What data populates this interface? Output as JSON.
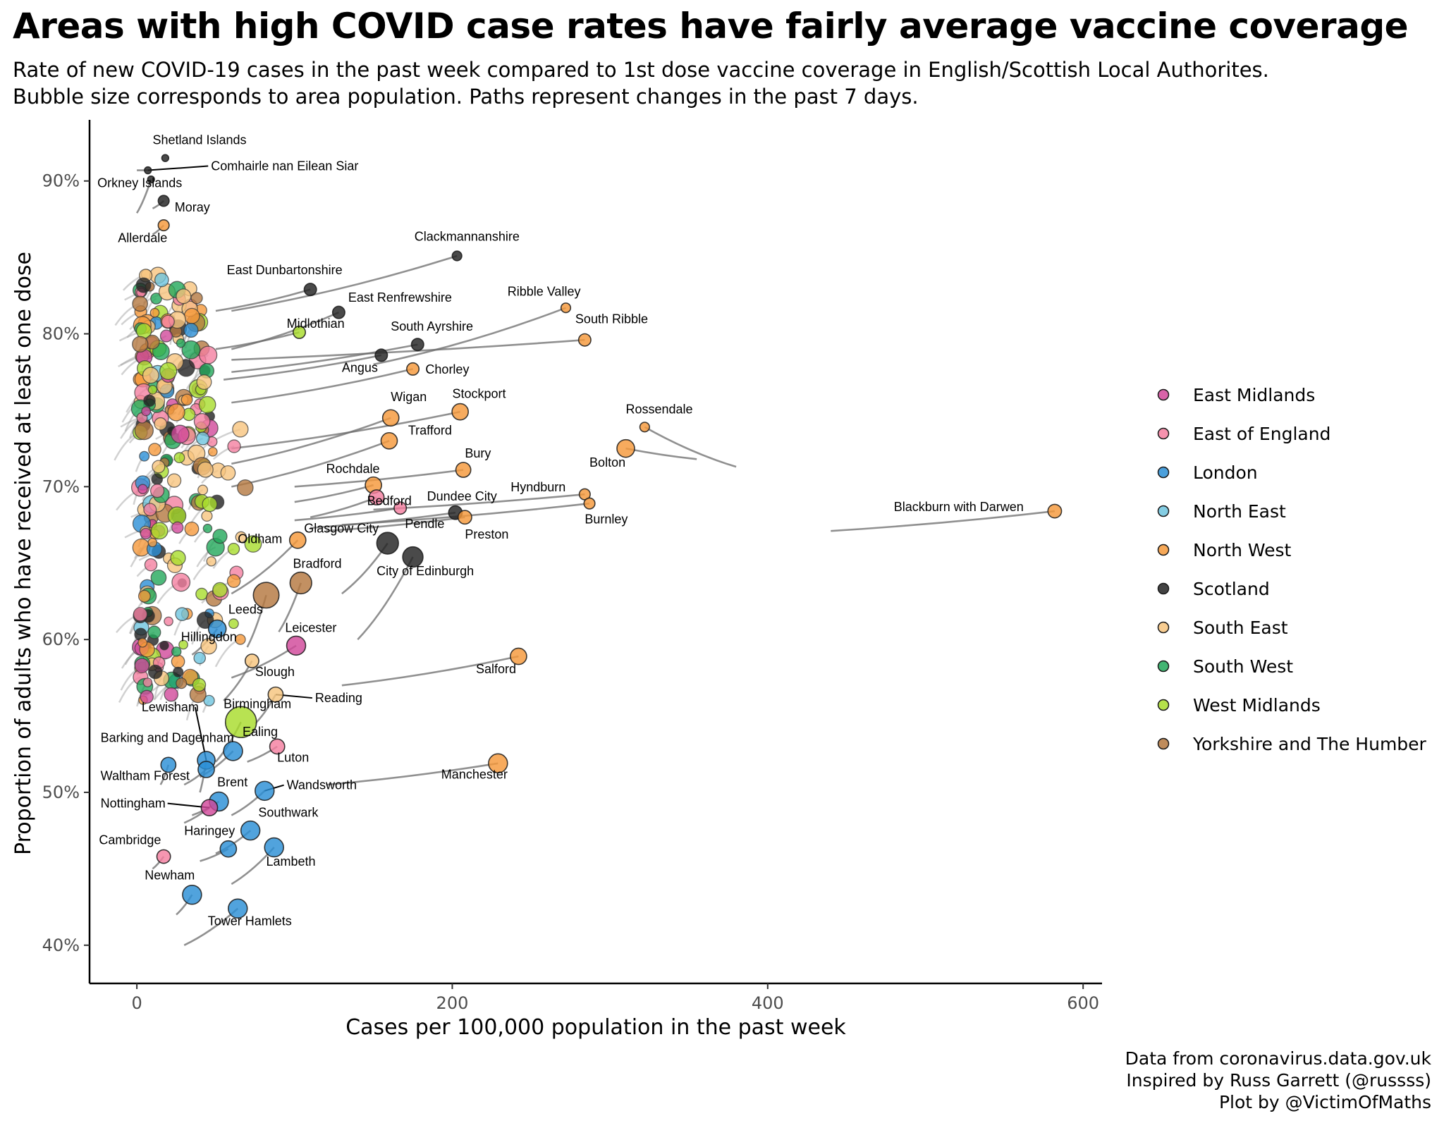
{
  "chart_data": {
    "type": "scatter",
    "title": "Areas with high COVID case rates have fairly average vaccine coverage",
    "subtitle_lines": [
      "Rate of new COVID-19 cases in the past week compared to 1st dose vaccine coverage in English/Scottish Local Authorites.",
      "Bubble size corresponds to area population. Paths represent changes in the past 7 days."
    ],
    "xlabel": "Cases per 100,000 population in the past week",
    "ylabel": "Proportion of adults who have received at least one dose",
    "xlim": [
      -30,
      612
    ],
    "ylim": [
      37.5,
      94
    ],
    "x_ticks": [
      0,
      200,
      400,
      600
    ],
    "x_tick_labels": [
      "0",
      "200",
      "400",
      "600"
    ],
    "y_ticks": [
      40,
      50,
      60,
      70,
      80,
      90
    ],
    "y_tick_labels": [
      "40%",
      "50%",
      "60%",
      "70%",
      "80%",
      "90%"
    ],
    "grid": false,
    "legend_position": "right",
    "legend": [
      {
        "name": "East Midlands",
        "color": "#d1489a"
      },
      {
        "name": "East of England",
        "color": "#f47fa0"
      },
      {
        "name": "London",
        "color": "#2b8fd6"
      },
      {
        "name": "North East",
        "color": "#6ec4de"
      },
      {
        "name": "North West",
        "color": "#f5993b"
      },
      {
        "name": "Scotland",
        "color": "#222222"
      },
      {
        "name": "South East",
        "color": "#f7c47e"
      },
      {
        "name": "South West",
        "color": "#22a85a"
      },
      {
        "name": "West Midlands",
        "color": "#a8dc2c"
      },
      {
        "name": "Yorkshire and The Humber",
        "color": "#b47840"
      }
    ],
    "labeled_points": [
      {
        "label": "Shetland Islands",
        "x": 18,
        "y": 91.5,
        "region": "Scotland",
        "size": 2,
        "tx": 10,
        "ty": 92.4,
        "trail_x": 18,
        "trail_y": 91.5
      },
      {
        "label": "Comhairle nan Eilean Siar",
        "x": 7,
        "y": 90.7,
        "region": "Scotland",
        "size": 2,
        "tx": 47,
        "ty": 90.7,
        "trail_x": 0,
        "trail_y": 90.7,
        "leader": true
      },
      {
        "label": "Orkney Islands",
        "x": 9,
        "y": 90.1,
        "region": "Scotland",
        "size": 2,
        "tx": -25,
        "ty": 89.6,
        "trail_x": 0,
        "trail_y": 87.9
      },
      {
        "label": "Moray",
        "x": 17,
        "y": 88.7,
        "region": "Scotland",
        "size": 5,
        "tx": 24,
        "ty": 88.0,
        "trail_x": 10,
        "trail_y": 88.2
      },
      {
        "label": "Allerdale",
        "x": 17,
        "y": 87.1,
        "region": "North West",
        "size": 5,
        "tx": -12,
        "ty": 86.0,
        "trail_x": 10,
        "trail_y": 86.5
      },
      {
        "label": "Clackmannanshire",
        "x": 203,
        "y": 85.1,
        "region": "Scotland",
        "size": 4,
        "tx": 176,
        "ty": 86.1,
        "trail_x": 60,
        "trail_y": 81.5
      },
      {
        "label": "East Dunbartonshire",
        "x": 110,
        "y": 82.9,
        "region": "Scotland",
        "size": 6,
        "tx": 57,
        "ty": 83.9,
        "trail_x": 50,
        "trail_y": 81.5
      },
      {
        "label": "Ribble Valley",
        "x": 272,
        "y": 81.7,
        "region": "North West",
        "size": 4,
        "tx": 235,
        "ty": 82.5,
        "trail_x": 150,
        "trail_y": 78.0
      },
      {
        "label": "East Renfrewshire",
        "x": 128,
        "y": 81.4,
        "region": "Scotland",
        "size": 6,
        "tx": 134,
        "ty": 82.1,
        "trail_x": 60,
        "trail_y": 79.0
      },
      {
        "label": "South Ribble",
        "x": 284,
        "y": 79.6,
        "region": "North West",
        "size": 6,
        "tx": 278,
        "ty": 80.7,
        "trail_x": 60,
        "trail_y": 78.3
      },
      {
        "label": "Midlothian",
        "x": 103,
        "y": 80.1,
        "region": "West Midlands",
        "size": 6,
        "tx": 95,
        "ty": 80.4,
        "trail_x": 50,
        "trail_y": 79.0
      },
      {
        "label": "South Ayrshire",
        "x": 178,
        "y": 79.3,
        "region": "Scotland",
        "size": 6,
        "tx": 161,
        "ty": 80.2,
        "trail_x": 60,
        "trail_y": 77.5
      },
      {
        "label": "Angus",
        "x": 155,
        "y": 78.6,
        "region": "Scotland",
        "size": 6,
        "tx": 130,
        "ty": 77.5,
        "trail_x": 55,
        "trail_y": 77.0
      },
      {
        "label": "Chorley",
        "x": 175,
        "y": 77.7,
        "region": "North West",
        "size": 6,
        "tx": 183,
        "ty": 77.4,
        "trail_x": 60,
        "trail_y": 75.5
      },
      {
        "label": "Stockport",
        "x": 205,
        "y": 74.9,
        "region": "North West",
        "size": 9,
        "tx": 200,
        "ty": 75.8,
        "trail_x": 60,
        "trail_y": 72.5
      },
      {
        "label": "Wigan",
        "x": 161,
        "y": 74.5,
        "region": "North West",
        "size": 9,
        "tx": 161,
        "ty": 75.6,
        "trail_x": 60,
        "trail_y": 71.5
      },
      {
        "label": "Rossendale",
        "x": 322,
        "y": 73.9,
        "region": "North West",
        "size": 4,
        "tx": 310,
        "ty": 74.8,
        "trail_x": 380,
        "trail_y": 71.3
      },
      {
        "label": "Trafford",
        "x": 160,
        "y": 73.0,
        "region": "North West",
        "size": 9,
        "tx": 172,
        "ty": 73.4,
        "trail_x": 60,
        "trail_y": 70.0
      },
      {
        "label": "Bolton",
        "x": 310,
        "y": 72.5,
        "region": "North West",
        "size": 10,
        "tx": 287,
        "ty": 71.3,
        "trail_x": 355,
        "trail_y": 71.8
      },
      {
        "label": "Bury",
        "x": 207,
        "y": 71.1,
        "region": "North West",
        "size": 8,
        "tx": 208,
        "ty": 71.9,
        "trail_x": 100,
        "trail_y": 70.0
      },
      {
        "label": "Rochdale",
        "x": 150,
        "y": 70.1,
        "region": "North West",
        "size": 9,
        "tx": 120,
        "ty": 70.9,
        "trail_x": 100,
        "trail_y": 69.0
      },
      {
        "label": "Hyndburn",
        "x": 284,
        "y": 69.5,
        "region": "North West",
        "size": 5,
        "tx": 237,
        "ty": 69.7,
        "trail_x": 150,
        "trail_y": 68.5
      },
      {
        "label": "Burnley",
        "x": 287,
        "y": 68.9,
        "region": "North West",
        "size": 5,
        "tx": 284,
        "ty": 67.6,
        "trail_x": 130,
        "trail_y": 67.5
      },
      {
        "label": "Blackburn with Darwen",
        "x": 582,
        "y": 68.4,
        "region": "North West",
        "size": 7,
        "tx": 480,
        "ty": 68.4,
        "trail_x": 440,
        "trail_y": 67.1
      },
      {
        "label": "Bedford",
        "x": 167,
        "y": 68.6,
        "region": "East of England",
        "size": 6,
        "tx": 146,
        "ty": 68.8,
        "trail_x": 100,
        "trail_y": 67.8
      },
      {
        "label": "Dundee City",
        "x": 202,
        "y": 68.3,
        "region": "Scotland",
        "size": 7,
        "tx": 184,
        "ty": 69.1,
        "trail_x": 110,
        "trail_y": 67.3
      },
      {
        "label": "Preston",
        "x": 208,
        "y": 68.0,
        "region": "North West",
        "size": 7,
        "tx": 208,
        "ty": 66.6,
        "trail_x": 120,
        "trail_y": 67.1
      },
      {
        "label": "Pendle",
        "x": 152,
        "y": 69.3,
        "region": "East of England",
        "size": 8,
        "tx": 170,
        "ty": 67.3,
        "trail_x": 110,
        "trail_y": 68.0
      },
      {
        "label": "Glasgow City",
        "x": 159,
        "y": 66.3,
        "region": "Scotland",
        "size": 13,
        "tx": 106,
        "ty": 67.0,
        "trail_x": 130,
        "trail_y": 63.0
      },
      {
        "label": "Oldham",
        "x": 102,
        "y": 66.5,
        "region": "North West",
        "size": 9,
        "tx": 64,
        "ty": 66.3,
        "trail_x": 60,
        "trail_y": 63.0
      },
      {
        "label": "City of Edinburgh",
        "x": 175,
        "y": 65.4,
        "region": "Scotland",
        "size": 12,
        "tx": 152,
        "ty": 64.2,
        "trail_x": 140,
        "trail_y": 60.0
      },
      {
        "label": "Bradford",
        "x": 104,
        "y": 63.7,
        "region": "Yorkshire and The Humber",
        "size": 13,
        "tx": 99,
        "ty": 64.7,
        "trail_x": 90,
        "trail_y": 60.5
      },
      {
        "label": "Leeds",
        "x": 82,
        "y": 62.9,
        "region": "Yorkshire and The Humber",
        "size": 16,
        "tx": 58,
        "ty": 61.7,
        "trail_x": 70,
        "trail_y": 59.5
      },
      {
        "label": "Leicester",
        "x": 101,
        "y": 59.6,
        "region": "East Midlands",
        "size": 11,
        "tx": 94,
        "ty": 60.5,
        "trail_x": 60,
        "trail_y": 57.5
      },
      {
        "label": "Hillingdon",
        "x": 51,
        "y": 60.7,
        "region": "London",
        "size": 10,
        "tx": 28,
        "ty": 59.9,
        "trail_x": 35,
        "trail_y": 59.0
      },
      {
        "label": "Salford",
        "x": 242,
        "y": 58.9,
        "region": "North West",
        "size": 9,
        "tx": 215,
        "ty": 57.8,
        "trail_x": 130,
        "trail_y": 57.0
      },
      {
        "label": "Slough",
        "x": 73,
        "y": 58.6,
        "region": "South East",
        "size": 7,
        "tx": 75,
        "ty": 57.6,
        "trail_x": 55,
        "trail_y": 56.0
      },
      {
        "label": "Birmingham",
        "x": 66,
        "y": 54.6,
        "region": "West Midlands",
        "size": 20,
        "tx": 55,
        "ty": 55.5,
        "trail_x": 50,
        "trail_y": 52.0
      },
      {
        "label": "Reading",
        "x": 88,
        "y": 56.4,
        "region": "South East",
        "size": 8,
        "tx": 113,
        "ty": 55.9,
        "trail_x": 75,
        "trail_y": 54.5,
        "leader": true
      },
      {
        "label": "Lewisham",
        "x": 44,
        "y": 52.1,
        "region": "London",
        "size": 10,
        "tx": 3,
        "ty": 55.3,
        "trail_x": 40,
        "trail_y": 50.0,
        "leader": true
      },
      {
        "label": "Barking and Dagenham",
        "x": 20,
        "y": 51.8,
        "region": "London",
        "size": 8,
        "tx": -23,
        "ty": 53.3,
        "trail_x": 15,
        "trail_y": 50.5
      },
      {
        "label": "Ealing",
        "x": 61,
        "y": 52.7,
        "region": "London",
        "size": 11,
        "tx": 67,
        "ty": 53.7,
        "trail_x": 40,
        "trail_y": 51.0
      },
      {
        "label": "Luton",
        "x": 89,
        "y": 53.0,
        "region": "East of England",
        "size": 8,
        "tx": 89,
        "ty": 52.0,
        "trail_x": 70,
        "trail_y": 52.0
      },
      {
        "label": "Manchester",
        "x": 229,
        "y": 51.9,
        "region": "North West",
        "size": 11,
        "tx": 193,
        "ty": 50.9,
        "trail_x": 120,
        "trail_y": 50.5
      },
      {
        "label": "Waltham Forest",
        "x": 44,
        "y": 51.5,
        "region": "London",
        "size": 9,
        "tx": -23,
        "ty": 50.8,
        "trail_x": 30,
        "trail_y": 50.5
      },
      {
        "label": "Brent",
        "x": 52,
        "y": 49.4,
        "region": "London",
        "size": 11,
        "tx": 51,
        "ty": 50.4,
        "trail_x": 35,
        "trail_y": 48.5
      },
      {
        "label": "Wandsworth",
        "x": 81,
        "y": 50.1,
        "region": "London",
        "size": 11,
        "tx": 95,
        "ty": 50.2,
        "trail_x": 60,
        "trail_y": 48.5,
        "leader": true
      },
      {
        "label": "Nottingham",
        "x": 46,
        "y": 49.0,
        "region": "East Midlands",
        "size": 9,
        "tx": -23,
        "ty": 49.0,
        "trail_x": 30,
        "trail_y": 48.0,
        "leader": true
      },
      {
        "label": "Southwark",
        "x": 72,
        "y": 47.5,
        "region": "London",
        "size": 11,
        "tx": 77,
        "ty": 48.4,
        "trail_x": 50,
        "trail_y": 46.0
      },
      {
        "label": "Haringey",
        "x": 58,
        "y": 46.3,
        "region": "London",
        "size": 9,
        "tx": 30,
        "ty": 47.2,
        "trail_x": 40,
        "trail_y": 45.5
      },
      {
        "label": "Cambridge",
        "x": 17,
        "y": 45.8,
        "region": "East of England",
        "size": 7,
        "tx": -24,
        "ty": 46.6,
        "trail_x": 10,
        "trail_y": 45.0
      },
      {
        "label": "Lambeth",
        "x": 87,
        "y": 46.4,
        "region": "London",
        "size": 11,
        "tx": 82,
        "ty": 45.2,
        "trail_x": 60,
        "trail_y": 44.0
      },
      {
        "label": "Newham",
        "x": 35,
        "y": 43.3,
        "region": "London",
        "size": 11,
        "tx": 5,
        "ty": 44.3,
        "trail_x": 25,
        "trail_y": 42.0
      },
      {
        "label": "Tower Hamlets",
        "x": 64,
        "y": 42.4,
        "region": "London",
        "size": 11,
        "tx": 45,
        "ty": 41.3,
        "trail_x": 30,
        "trail_y": 40.0
      }
    ]
  },
  "caption_lines": [
    "Data from coronavirus.data.gov.uk",
    "Inspired by Russ Garrett (@russss)",
    "Plot by @VictimOfMaths"
  ]
}
